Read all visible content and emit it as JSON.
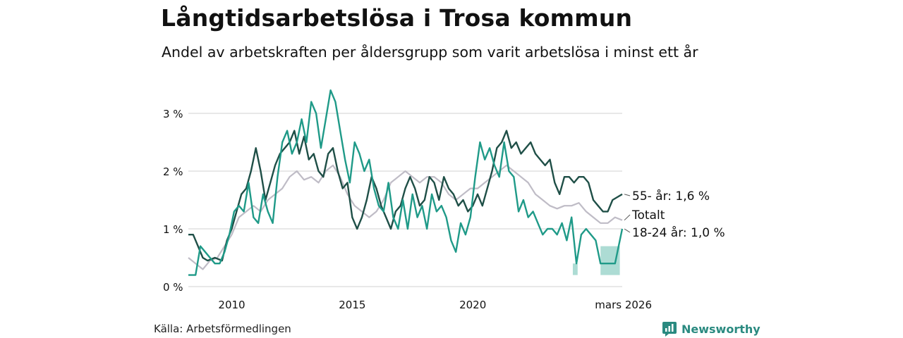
{
  "header": {
    "title": "Långtidsarbetslösa i Trosa kommun",
    "subtitle": "Andel av arbetskraften per åldersgrupp som varit arbetslösa i minst ett år"
  },
  "footer": {
    "source": "Källa: Arbetsförmedlingen",
    "brand": "Newsworthy"
  },
  "colors": {
    "age55": "#1f4f47",
    "total": "#bfbcc6",
    "age1824": "#1f9a88",
    "band": "#9fd6cc",
    "grid": "#d9d9d9"
  },
  "chart_data": {
    "type": "line",
    "title": "Långtidsarbetslösa i Trosa kommun",
    "subtitle": "Andel av arbetskraften per åldersgrupp som varit arbetslösa i minst ett år",
    "xlabel": "",
    "ylabel": "",
    "xlim": [
      2008.2,
      2026.2
    ],
    "ylim": [
      0,
      3.5
    ],
    "grid": true,
    "y_ticks": [
      {
        "value": 0,
        "label": "0 %"
      },
      {
        "value": 1,
        "label": "1 %"
      },
      {
        "value": 2,
        "label": "2 %"
      },
      {
        "value": 3,
        "label": "3 %"
      }
    ],
    "x_ticks": [
      {
        "value": 2010,
        "label": "2010"
      },
      {
        "value": 2015,
        "label": "2015"
      },
      {
        "value": 2020,
        "label": "2020"
      },
      {
        "value": 2026.2,
        "label": "mars 2026"
      }
    ],
    "series": [
      {
        "name": "Totalt",
        "label": "Totalt",
        "color": "#bfbcc6",
        "points": [
          [
            2008.2,
            0.5
          ],
          [
            2008.5,
            0.4
          ],
          [
            2008.8,
            0.3
          ],
          [
            2009.1,
            0.45
          ],
          [
            2009.4,
            0.5
          ],
          [
            2009.7,
            0.7
          ],
          [
            2010.0,
            0.9
          ],
          [
            2010.3,
            1.2
          ],
          [
            2010.6,
            1.3
          ],
          [
            2010.9,
            1.4
          ],
          [
            2011.2,
            1.3
          ],
          [
            2011.5,
            1.5
          ],
          [
            2011.8,
            1.6
          ],
          [
            2012.1,
            1.7
          ],
          [
            2012.4,
            1.9
          ],
          [
            2012.7,
            2.0
          ],
          [
            2013.0,
            1.85
          ],
          [
            2013.3,
            1.9
          ],
          [
            2013.6,
            1.8
          ],
          [
            2013.9,
            2.0
          ],
          [
            2014.2,
            2.1
          ],
          [
            2014.5,
            1.9
          ],
          [
            2014.8,
            1.6
          ],
          [
            2015.1,
            1.4
          ],
          [
            2015.4,
            1.3
          ],
          [
            2015.7,
            1.2
          ],
          [
            2016.0,
            1.3
          ],
          [
            2016.3,
            1.5
          ],
          [
            2016.6,
            1.8
          ],
          [
            2016.9,
            1.9
          ],
          [
            2017.2,
            2.0
          ],
          [
            2017.5,
            1.9
          ],
          [
            2017.8,
            1.8
          ],
          [
            2018.1,
            1.9
          ],
          [
            2018.4,
            1.9
          ],
          [
            2018.7,
            1.8
          ],
          [
            2019.0,
            1.6
          ],
          [
            2019.3,
            1.5
          ],
          [
            2019.6,
            1.6
          ],
          [
            2019.9,
            1.7
          ],
          [
            2020.2,
            1.7
          ],
          [
            2020.5,
            1.8
          ],
          [
            2020.8,
            1.9
          ],
          [
            2021.1,
            2.0
          ],
          [
            2021.4,
            2.1
          ],
          [
            2021.7,
            2.0
          ],
          [
            2022.0,
            1.9
          ],
          [
            2022.3,
            1.8
          ],
          [
            2022.6,
            1.6
          ],
          [
            2022.9,
            1.5
          ],
          [
            2023.2,
            1.4
          ],
          [
            2023.5,
            1.35
          ],
          [
            2023.8,
            1.4
          ],
          [
            2024.1,
            1.4
          ],
          [
            2024.4,
            1.45
          ],
          [
            2024.7,
            1.3
          ],
          [
            2025.0,
            1.2
          ],
          [
            2025.3,
            1.1
          ],
          [
            2025.6,
            1.1
          ],
          [
            2025.9,
            1.2
          ],
          [
            2026.2,
            1.15
          ]
        ]
      },
      {
        "name": "55- år",
        "label": "55- år: 1,6 %",
        "color": "#1f4f47",
        "points": [
          [
            2008.2,
            0.9
          ],
          [
            2008.4,
            0.9
          ],
          [
            2008.6,
            0.7
          ],
          [
            2008.8,
            0.5
          ],
          [
            2009.0,
            0.45
          ],
          [
            2009.3,
            0.5
          ],
          [
            2009.6,
            0.45
          ],
          [
            2009.8,
            0.8
          ],
          [
            2010.0,
            1.0
          ],
          [
            2010.2,
            1.3
          ],
          [
            2010.4,
            1.6
          ],
          [
            2010.6,
            1.7
          ],
          [
            2010.8,
            2.0
          ],
          [
            2011.0,
            2.4
          ],
          [
            2011.2,
            2.0
          ],
          [
            2011.4,
            1.5
          ],
          [
            2011.6,
            1.8
          ],
          [
            2011.8,
            2.1
          ],
          [
            2012.0,
            2.3
          ],
          [
            2012.2,
            2.4
          ],
          [
            2012.4,
            2.5
          ],
          [
            2012.6,
            2.7
          ],
          [
            2012.8,
            2.3
          ],
          [
            2013.0,
            2.6
          ],
          [
            2013.2,
            2.2
          ],
          [
            2013.4,
            2.3
          ],
          [
            2013.6,
            2.0
          ],
          [
            2013.8,
            1.9
          ],
          [
            2014.0,
            2.3
          ],
          [
            2014.2,
            2.4
          ],
          [
            2014.4,
            2.0
          ],
          [
            2014.6,
            1.7
          ],
          [
            2014.8,
            1.8
          ],
          [
            2015.0,
            1.2
          ],
          [
            2015.2,
            1.0
          ],
          [
            2015.4,
            1.2
          ],
          [
            2015.6,
            1.5
          ],
          [
            2015.8,
            1.9
          ],
          [
            2016.0,
            1.7
          ],
          [
            2016.2,
            1.4
          ],
          [
            2016.4,
            1.2
          ],
          [
            2016.6,
            1.0
          ],
          [
            2016.8,
            1.3
          ],
          [
            2017.0,
            1.4
          ],
          [
            2017.2,
            1.7
          ],
          [
            2017.4,
            1.9
          ],
          [
            2017.6,
            1.7
          ],
          [
            2017.8,
            1.4
          ],
          [
            2018.0,
            1.5
          ],
          [
            2018.2,
            1.9
          ],
          [
            2018.4,
            1.8
          ],
          [
            2018.6,
            1.5
          ],
          [
            2018.8,
            1.9
          ],
          [
            2019.0,
            1.7
          ],
          [
            2019.2,
            1.6
          ],
          [
            2019.4,
            1.4
          ],
          [
            2019.6,
            1.5
          ],
          [
            2019.8,
            1.3
          ],
          [
            2020.0,
            1.4
          ],
          [
            2020.2,
            1.6
          ],
          [
            2020.4,
            1.4
          ],
          [
            2020.6,
            1.7
          ],
          [
            2020.8,
            2.0
          ],
          [
            2021.0,
            2.4
          ],
          [
            2021.2,
            2.5
          ],
          [
            2021.4,
            2.7
          ],
          [
            2021.6,
            2.4
          ],
          [
            2021.8,
            2.5
          ],
          [
            2022.0,
            2.3
          ],
          [
            2022.2,
            2.4
          ],
          [
            2022.4,
            2.5
          ],
          [
            2022.6,
            2.3
          ],
          [
            2022.8,
            2.2
          ],
          [
            2023.0,
            2.1
          ],
          [
            2023.2,
            2.2
          ],
          [
            2023.4,
            1.8
          ],
          [
            2023.6,
            1.6
          ],
          [
            2023.8,
            1.9
          ],
          [
            2024.0,
            1.9
          ],
          [
            2024.2,
            1.8
          ],
          [
            2024.4,
            1.9
          ],
          [
            2024.6,
            1.9
          ],
          [
            2024.8,
            1.8
          ],
          [
            2025.0,
            1.5
          ],
          [
            2025.2,
            1.4
          ],
          [
            2025.4,
            1.3
          ],
          [
            2025.6,
            1.3
          ],
          [
            2025.8,
            1.5
          ],
          [
            2026.0,
            1.55
          ],
          [
            2026.2,
            1.6
          ]
        ]
      },
      {
        "name": "18-24 år",
        "label": "18-24 år: 1,0 %",
        "color": "#1f9a88",
        "points": [
          [
            2008.2,
            0.2
          ],
          [
            2008.5,
            0.2
          ],
          [
            2008.7,
            0.7
          ],
          [
            2008.9,
            0.6
          ],
          [
            2009.1,
            0.5
          ],
          [
            2009.3,
            0.4
          ],
          [
            2009.5,
            0.4
          ],
          [
            2009.7,
            0.6
          ],
          [
            2009.9,
            0.9
          ],
          [
            2010.1,
            1.3
          ],
          [
            2010.3,
            1.4
          ],
          [
            2010.5,
            1.3
          ],
          [
            2010.7,
            1.8
          ],
          [
            2010.9,
            1.2
          ],
          [
            2011.1,
            1.1
          ],
          [
            2011.3,
            1.6
          ],
          [
            2011.5,
            1.3
          ],
          [
            2011.7,
            1.1
          ],
          [
            2011.9,
            1.9
          ],
          [
            2012.1,
            2.5
          ],
          [
            2012.3,
            2.7
          ],
          [
            2012.5,
            2.3
          ],
          [
            2012.7,
            2.5
          ],
          [
            2012.9,
            2.9
          ],
          [
            2013.1,
            2.5
          ],
          [
            2013.3,
            3.2
          ],
          [
            2013.5,
            3.0
          ],
          [
            2013.7,
            2.4
          ],
          [
            2013.9,
            2.9
          ],
          [
            2014.1,
            3.4
          ],
          [
            2014.3,
            3.2
          ],
          [
            2014.5,
            2.7
          ],
          [
            2014.7,
            2.2
          ],
          [
            2014.9,
            1.8
          ],
          [
            2015.1,
            2.5
          ],
          [
            2015.3,
            2.3
          ],
          [
            2015.5,
            2.0
          ],
          [
            2015.7,
            2.2
          ],
          [
            2015.9,
            1.7
          ],
          [
            2016.1,
            1.4
          ],
          [
            2016.3,
            1.3
          ],
          [
            2016.5,
            1.8
          ],
          [
            2016.7,
            1.2
          ],
          [
            2016.9,
            1.0
          ],
          [
            2017.1,
            1.5
          ],
          [
            2017.3,
            1.0
          ],
          [
            2017.5,
            1.6
          ],
          [
            2017.7,
            1.2
          ],
          [
            2017.9,
            1.4
          ],
          [
            2018.1,
            1.0
          ],
          [
            2018.3,
            1.6
          ],
          [
            2018.5,
            1.3
          ],
          [
            2018.7,
            1.4
          ],
          [
            2018.9,
            1.2
          ],
          [
            2019.1,
            0.8
          ],
          [
            2019.3,
            0.6
          ],
          [
            2019.5,
            1.1
          ],
          [
            2019.7,
            0.9
          ],
          [
            2019.9,
            1.2
          ],
          [
            2020.1,
            1.9
          ],
          [
            2020.3,
            2.5
          ],
          [
            2020.5,
            2.2
          ],
          [
            2020.7,
            2.4
          ],
          [
            2020.9,
            2.1
          ],
          [
            2021.1,
            1.9
          ],
          [
            2021.3,
            2.5
          ],
          [
            2021.5,
            2.0
          ],
          [
            2021.7,
            1.9
          ],
          [
            2021.9,
            1.3
          ],
          [
            2022.1,
            1.5
          ],
          [
            2022.3,
            1.2
          ],
          [
            2022.5,
            1.3
          ],
          [
            2022.7,
            1.1
          ],
          [
            2022.9,
            0.9
          ],
          [
            2023.1,
            1.0
          ],
          [
            2023.3,
            1.0
          ],
          [
            2023.5,
            0.9
          ],
          [
            2023.7,
            1.1
          ],
          [
            2023.9,
            0.8
          ],
          [
            2024.1,
            1.2
          ],
          [
            2024.3,
            0.4
          ],
          [
            2024.5,
            0.9
          ],
          [
            2024.7,
            1.0
          ],
          [
            2024.9,
            0.9
          ],
          [
            2025.1,
            0.8
          ],
          [
            2025.3,
            0.4
          ],
          [
            2025.6,
            0.4
          ],
          [
            2025.9,
            0.4
          ],
          [
            2026.2,
            1.0
          ]
        ]
      }
    ],
    "uncertainty_bands": [
      {
        "series": "18-24 år",
        "x": [
          2024.15,
          2024.35
        ],
        "y": [
          0.2,
          0.4
        ]
      },
      {
        "series": "18-24 år",
        "x": [
          2025.3,
          2026.1
        ],
        "y": [
          0.2,
          0.7
        ]
      }
    ]
  }
}
